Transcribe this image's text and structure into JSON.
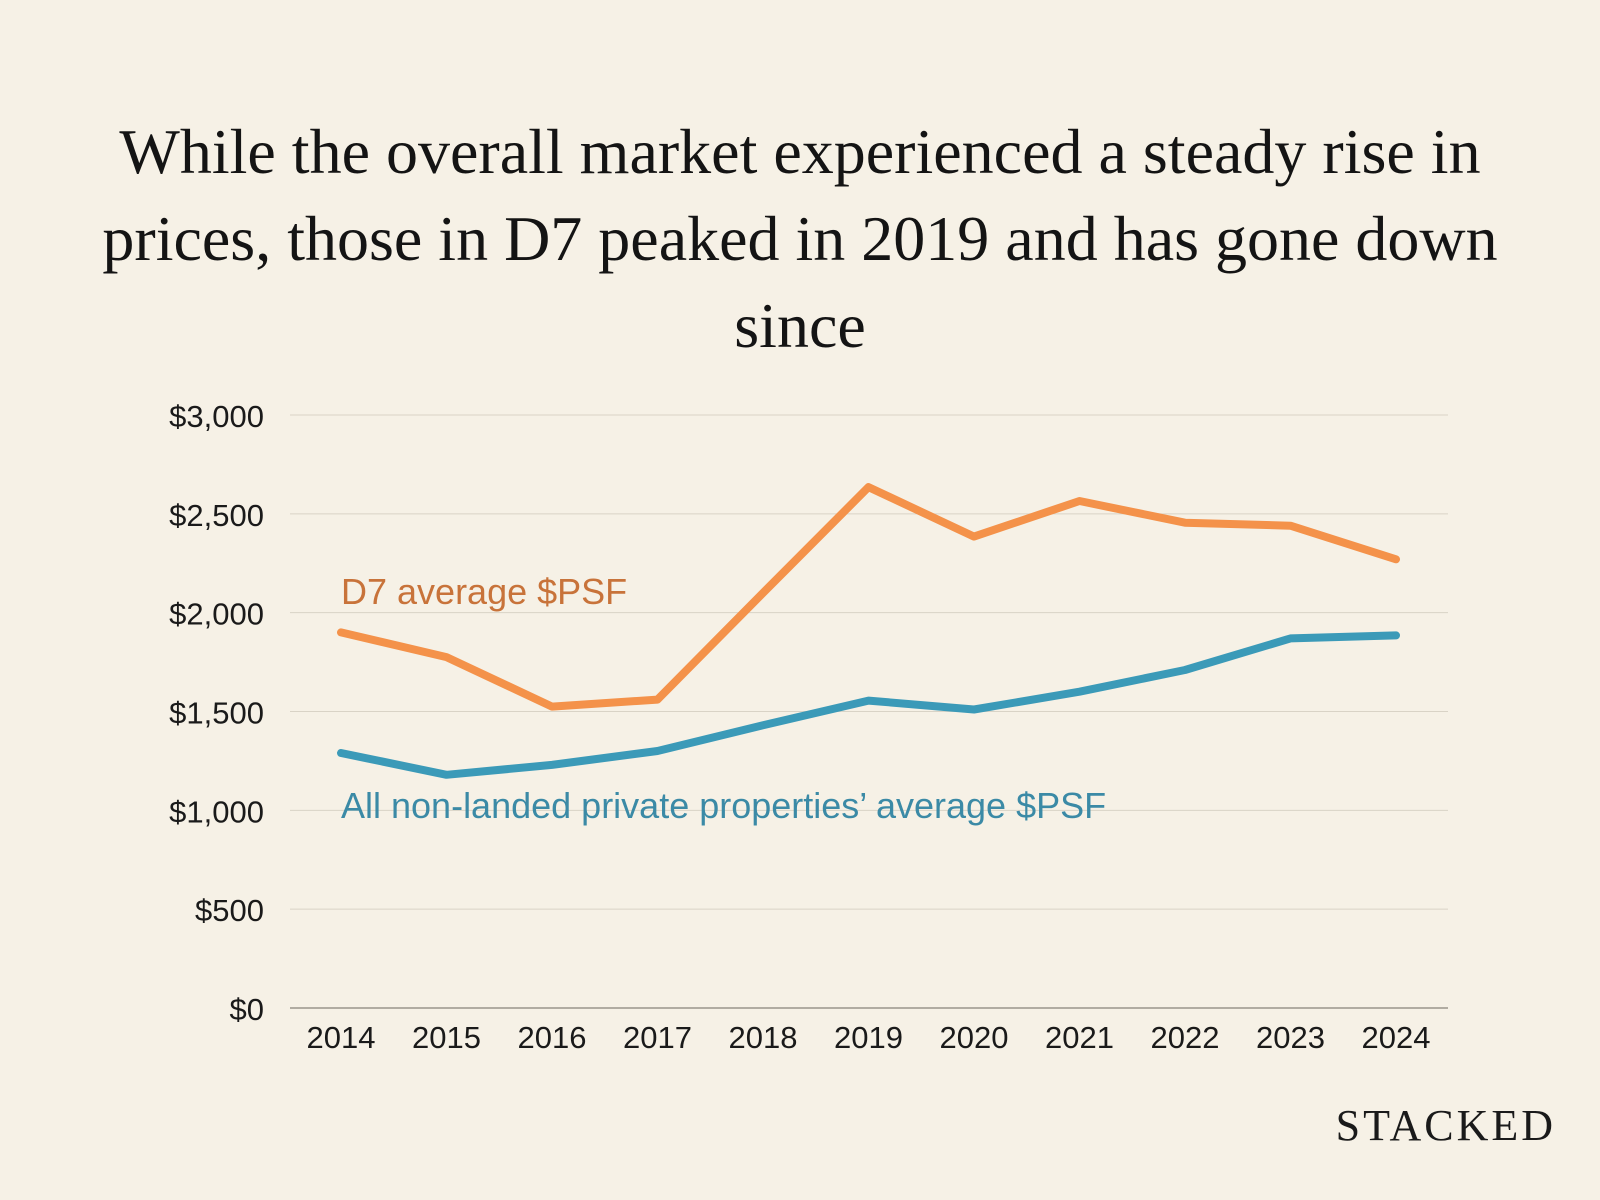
{
  "chart_data": {
    "type": "line",
    "title": "While the overall market experienced a steady rise in prices, those in D7 peaked in 2019 and has gone down since",
    "xlabel": "",
    "ylabel": "",
    "ylim": [
      0,
      3000
    ],
    "grid": true,
    "categories": [
      "2014",
      "2015",
      "2016",
      "2017",
      "2018",
      "2019",
      "2020",
      "2021",
      "2022",
      "2023",
      "2024"
    ],
    "y_ticks": [
      "$0",
      "$500",
      "$1,000",
      "$1,500",
      "$2,000",
      "$2,500",
      "$3,000"
    ],
    "y_tick_values": [
      0,
      500,
      1000,
      1500,
      2000,
      2500,
      3000
    ],
    "series": [
      {
        "name": "D7 average $PSF",
        "color": "#f4924a",
        "label_color": "#c8733a",
        "values": [
          1900,
          1775,
          1525,
          1560,
          2100,
          2635,
          2385,
          2565,
          2455,
          2440,
          2270
        ]
      },
      {
        "name": "All non-landed private properties’ average $PSF",
        "color": "#3b9ab8",
        "label_color": "#3b8aa6",
        "values": [
          1290,
          1180,
          1230,
          1300,
          1430,
          1555,
          1510,
          1600,
          1710,
          1870,
          1885
        ]
      }
    ]
  },
  "brand": "STACKED"
}
